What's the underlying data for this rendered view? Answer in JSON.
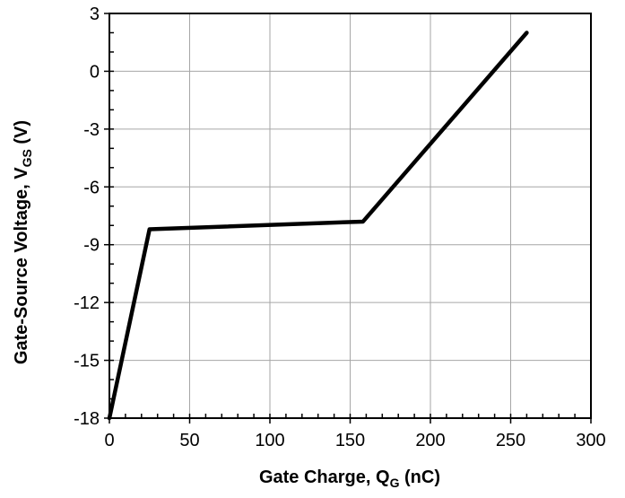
{
  "chart_data": {
    "type": "line",
    "title": "",
    "xlabel": {
      "main": "Gate Charge, Q",
      "subscript": "G",
      "suffix": " (nC)"
    },
    "ylabel": {
      "main": "Gate-Source Voltage, V",
      "subscript": "GS",
      "suffix": " (V)"
    },
    "xlim": [
      0,
      300
    ],
    "ylim": [
      -18,
      3
    ],
    "x_ticks": [
      0,
      50,
      100,
      150,
      200,
      250,
      300
    ],
    "y_ticks": [
      -18,
      -15,
      -12,
      -9,
      -6,
      -3,
      0,
      3
    ],
    "x_minor_step": 10,
    "y_minor_step": 1,
    "grid": true,
    "legend": "none",
    "series": [
      {
        "x": [
          0,
          25,
          158,
          260
        ],
        "y": [
          -18,
          -8.2,
          -7.8,
          2
        ],
        "color": "#000000"
      }
    ]
  }
}
